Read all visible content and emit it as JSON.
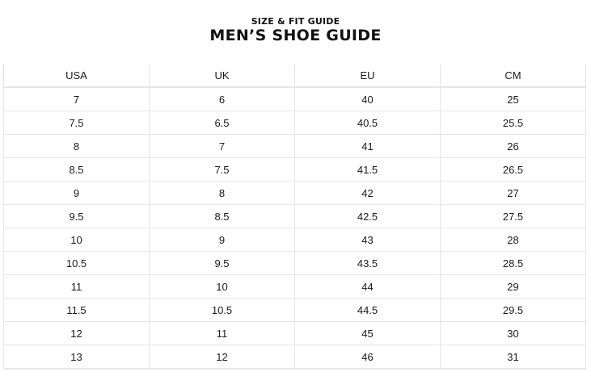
{
  "header": {
    "subtitle": "SIZE & FIT GUIDE",
    "title": "MEN’S SHOE GUIDE"
  },
  "table": {
    "columns": [
      "USA",
      "UK",
      "EU",
      "CM"
    ],
    "rows": [
      [
        "7",
        "6",
        "40",
        "25"
      ],
      [
        "7.5",
        "6.5",
        "40.5",
        "25.5"
      ],
      [
        "8",
        "7",
        "41",
        "26"
      ],
      [
        "8.5",
        "7.5",
        "41.5",
        "26.5"
      ],
      [
        "9",
        "8",
        "42",
        "27"
      ],
      [
        "9.5",
        "8.5",
        "42.5",
        "27.5"
      ],
      [
        "10",
        "9",
        "43",
        "28"
      ],
      [
        "10.5",
        "9.5",
        "43.5",
        "28.5"
      ],
      [
        "11",
        "10",
        "44",
        "29"
      ],
      [
        "11.5",
        "10.5",
        "44.5",
        "29.5"
      ],
      [
        "12",
        "11",
        "45",
        "30"
      ],
      [
        "13",
        "12",
        "46",
        "31"
      ]
    ]
  },
  "colors": {
    "text": "#1a1a1a",
    "grid": "#e6e6e6",
    "background": "#ffffff"
  }
}
